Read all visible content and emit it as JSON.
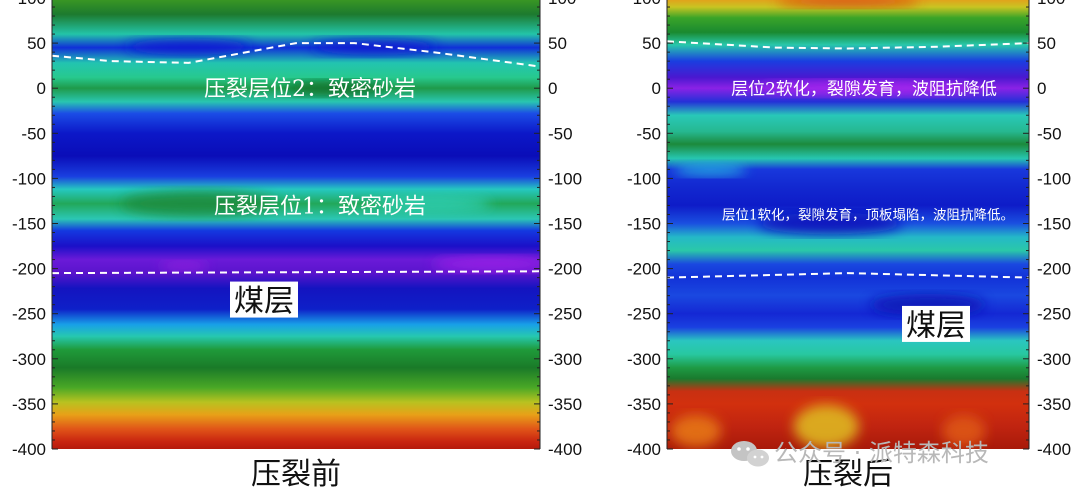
{
  "chart_data": [
    {
      "type": "heatmap",
      "title": "压裂前",
      "ylim": [
        -400,
        100
      ],
      "yticks": [
        100,
        50,
        0,
        -50,
        -100,
        -150,
        -200,
        -250,
        -300,
        -350,
        -400
      ],
      "annotations": [
        {
          "text": "压裂层位2：致密砂岩",
          "y": 0
        },
        {
          "text": "压裂层位1：致密砂岩",
          "y": -130
        },
        {
          "text": "煤层",
          "y": -235,
          "boxed": true
        }
      ],
      "dashed_lines": [
        {
          "name": "upper-boundary",
          "x": [
            0,
            0.12,
            0.28,
            0.5,
            0.62,
            0.78,
            1
          ],
          "y": [
            36,
            30,
            28,
            50,
            50,
            40,
            24
          ]
        },
        {
          "name": "lower-boundary",
          "x": [
            0,
            0.5,
            1
          ],
          "y": [
            -205,
            -204,
            -203
          ]
        }
      ],
      "bands": [
        {
          "y": 100,
          "color": "#3d9a22"
        },
        {
          "y": 82,
          "color": "#1d7a2e"
        },
        {
          "y": 60,
          "color": "#23c4a8"
        },
        {
          "y": 45,
          "color": "#1030d8"
        },
        {
          "y": 28,
          "color": "#22c4b0"
        },
        {
          "y": 12,
          "color": "#27c98e"
        },
        {
          "y": 0,
          "color": "#1f9a4a"
        },
        {
          "y": -15,
          "color": "#29c6b0"
        },
        {
          "y": -28,
          "color": "#1b4ce6"
        },
        {
          "y": -50,
          "color": "#0c18c8"
        },
        {
          "y": -75,
          "color": "#0a0db8"
        },
        {
          "y": -98,
          "color": "#1a40e0"
        },
        {
          "y": -112,
          "color": "#25c8c0"
        },
        {
          "y": -128,
          "color": "#22a85a"
        },
        {
          "y": -145,
          "color": "#2bc7b4"
        },
        {
          "y": -158,
          "color": "#1438e0"
        },
        {
          "y": -175,
          "color": "#1a10c8"
        },
        {
          "y": -190,
          "color": "#6a1ad8"
        },
        {
          "y": -205,
          "color": "#5a14cc"
        },
        {
          "y": -222,
          "color": "#1414c0"
        },
        {
          "y": -245,
          "color": "#0e20c8"
        },
        {
          "y": -262,
          "color": "#18a0e8"
        },
        {
          "y": -275,
          "color": "#26c8b0"
        },
        {
          "y": -290,
          "color": "#1f9a3a"
        },
        {
          "y": -310,
          "color": "#1a7a28"
        },
        {
          "y": -332,
          "color": "#4aa826"
        },
        {
          "y": -348,
          "color": "#b8c220"
        },
        {
          "y": -362,
          "color": "#e8a018"
        },
        {
          "y": -378,
          "color": "#e05418"
        },
        {
          "y": -392,
          "color": "#c82410"
        },
        {
          "y": -400,
          "color": "#b41a0c"
        }
      ],
      "blobs": [
        {
          "name": "upper-blue-lens-1",
          "cx": 0.28,
          "cy": 46,
          "rx": 0.13,
          "ry": 9,
          "color": "#0b1ed0"
        },
        {
          "name": "upper-blue-lens-2",
          "cx": 0.66,
          "cy": 46,
          "rx": 0.13,
          "ry": 9,
          "color": "#0b1ed0"
        },
        {
          "name": "layer2-dark-core",
          "cx": 0.58,
          "cy": 0,
          "rx": 0.1,
          "ry": 8,
          "color": "#0a6a28"
        },
        {
          "name": "layer1-green-core",
          "cx": 0.3,
          "cy": -128,
          "rx": 0.16,
          "ry": 14,
          "color": "#1a8a3e"
        },
        {
          "name": "layer1-cyan-right",
          "cx": 0.78,
          "cy": -128,
          "rx": 0.12,
          "ry": 10,
          "color": "#2fd0b8"
        },
        {
          "name": "coal-purple-right",
          "cx": 0.9,
          "cy": -195,
          "rx": 0.12,
          "ry": 8,
          "color": "#a020e8"
        },
        {
          "name": "coal-purple-left",
          "cx": 0.27,
          "cy": -197,
          "rx": 0.05,
          "ry": 5,
          "color": "#9a22e0"
        }
      ]
    },
    {
      "type": "heatmap",
      "title": "压裂后",
      "ylim": [
        -400,
        100
      ],
      "yticks": [
        100,
        50,
        0,
        -50,
        -100,
        -150,
        -200,
        -250,
        -300,
        -350,
        -400
      ],
      "annotations": [
        {
          "text": "层位2软化，裂隙发育，波阻抗降低",
          "y": 0
        },
        {
          "text": "层位1软化，裂隙发育，顶板塌陷，波阻抗降低。",
          "y": -140
        },
        {
          "text": "煤层",
          "y": -262,
          "boxed": true
        }
      ],
      "dashed_lines": [
        {
          "name": "upper-boundary",
          "x": [
            0,
            0.3,
            0.5,
            0.75,
            1
          ],
          "y": [
            52,
            45,
            44,
            46,
            50
          ]
        },
        {
          "name": "lower-boundary",
          "x": [
            0,
            0.5,
            1
          ],
          "y": [
            -210,
            -205,
            -210
          ]
        }
      ],
      "bands": [
        {
          "y": 100,
          "color": "#e89a1a"
        },
        {
          "y": 90,
          "color": "#c8c422"
        },
        {
          "y": 78,
          "color": "#3aa428"
        },
        {
          "y": 62,
          "color": "#1a8a30"
        },
        {
          "y": 48,
          "color": "#28c8ac"
        },
        {
          "y": 30,
          "color": "#1a3ee0"
        },
        {
          "y": 12,
          "color": "#4a18d0"
        },
        {
          "y": 0,
          "color": "#8a22e6"
        },
        {
          "y": -15,
          "color": "#2430d8"
        },
        {
          "y": -30,
          "color": "#28c8b8"
        },
        {
          "y": -48,
          "color": "#26b890"
        },
        {
          "y": -62,
          "color": "#1c8a3c"
        },
        {
          "y": -78,
          "color": "#26c6b0"
        },
        {
          "y": -90,
          "color": "#1838dc"
        },
        {
          "y": -110,
          "color": "#1228d0"
        },
        {
          "y": -130,
          "color": "#0e1cc8"
        },
        {
          "y": -150,
          "color": "#1a50e0"
        },
        {
          "y": -165,
          "color": "#24b8c8"
        },
        {
          "y": -180,
          "color": "#2ac8a8"
        },
        {
          "y": -195,
          "color": "#1a48e0"
        },
        {
          "y": -210,
          "color": "#1232d8"
        },
        {
          "y": -230,
          "color": "#1a48e0"
        },
        {
          "y": -250,
          "color": "#1428d4"
        },
        {
          "y": -265,
          "color": "#1a40e0"
        },
        {
          "y": -280,
          "color": "#2ac6c0"
        },
        {
          "y": -295,
          "color": "#28c8a0"
        },
        {
          "y": -310,
          "color": "#1e9a44"
        },
        {
          "y": -322,
          "color": "#1a7a2e"
        },
        {
          "y": -336,
          "color": "#c83012"
        },
        {
          "y": -350,
          "color": "#d2300e"
        },
        {
          "y": -375,
          "color": "#c02410"
        },
        {
          "y": -400,
          "color": "#a81a0a"
        }
      ],
      "blobs": [
        {
          "name": "top-orange-lens",
          "cx": 0.5,
          "cy": 96,
          "rx": 0.2,
          "ry": 6,
          "color": "#d83a10"
        },
        {
          "name": "layer2-purple",
          "cx": 0.55,
          "cy": 0,
          "rx": 0.3,
          "ry": 8,
          "color": "#a826ee"
        },
        {
          "name": "layer1-cyan-left",
          "cx": 0.12,
          "cy": -90,
          "rx": 0.1,
          "ry": 7,
          "color": "#28b8e0"
        },
        {
          "name": "layer1-blue-lens",
          "cx": 0.45,
          "cy": -150,
          "rx": 0.2,
          "ry": 12,
          "color": "#0a10b8"
        },
        {
          "name": "coal-dark-blue",
          "cx": 0.72,
          "cy": -240,
          "rx": 0.16,
          "ry": 12,
          "color": "#0c14b4"
        },
        {
          "name": "bottom-yellow-dome",
          "cx": 0.44,
          "cy": -375,
          "rx": 0.09,
          "ry": 24,
          "color": "#e0c020"
        },
        {
          "name": "bottom-orange-left",
          "cx": 0.08,
          "cy": -380,
          "rx": 0.07,
          "ry": 18,
          "color": "#e87a18"
        },
        {
          "name": "bottom-orange-right",
          "cx": 0.82,
          "cy": -380,
          "rx": 0.06,
          "ry": 18,
          "color": "#e05a16"
        }
      ]
    }
  ],
  "watermark": {
    "icon": "wechat-icon",
    "text": "公众号 · 派特森科技"
  }
}
